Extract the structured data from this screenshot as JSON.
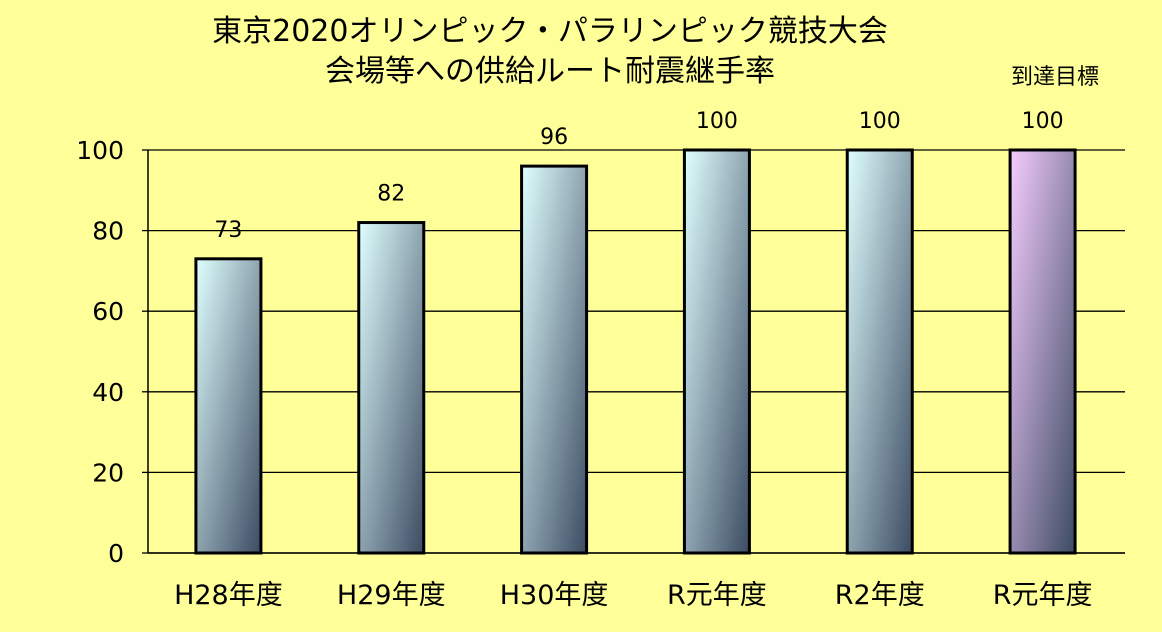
{
  "chart_data": {
    "type": "bar",
    "title": [
      "東京2020オリンピック・パラリンピック競技大会",
      "会場等への供給ルート耐震継手率"
    ],
    "categories": [
      "H28年度",
      "H29年度",
      "H30年度",
      "R元年度",
      "R2年度",
      "R元年度"
    ],
    "values": [
      73,
      82,
      96,
      100,
      100,
      100
    ],
    "data_labels": [
      "73",
      "82",
      "96",
      "100",
      "100",
      "100"
    ],
    "target_caption": "到達目標",
    "target_index": 5,
    "ylim": [
      0,
      100
    ],
    "yticks": [
      0,
      20,
      40,
      60,
      80,
      100
    ],
    "grid": true,
    "legend": "none",
    "colors": {
      "background": "#ffff99",
      "plot_background": "#ffff99",
      "grid": "#000000",
      "bar_top": "#e0ffff",
      "bar_bottom": "#3c4b62",
      "target_top": "#f5ccff",
      "target_bottom": "#3c4b62"
    }
  }
}
